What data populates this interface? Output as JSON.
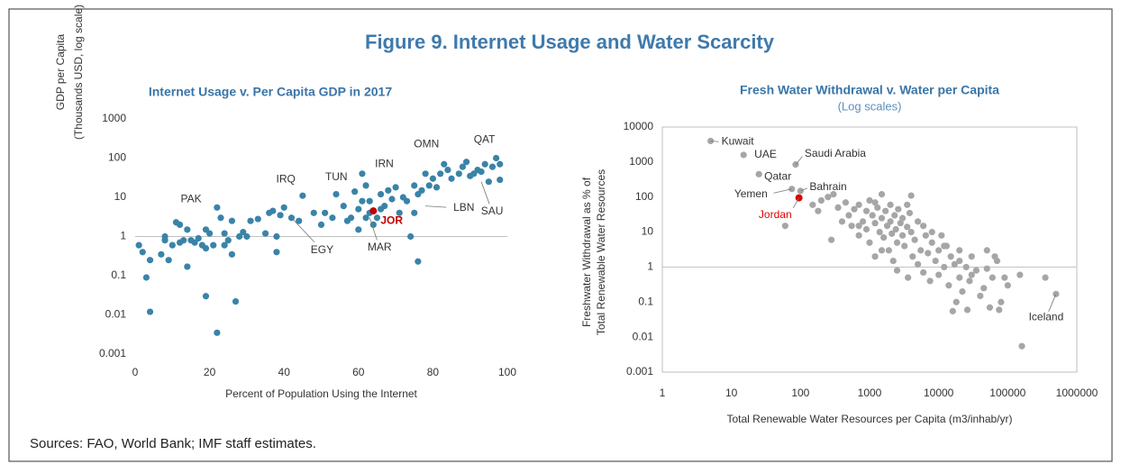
{
  "title": "Figure 9. Internet Usage and Water Scarcity",
  "source": "Sources: FAO, World Bank; IMF staff estimates.",
  "chart_data": [
    {
      "type": "scatter",
      "title": "Internet Usage v. Per Capita GDP in 2017",
      "xlabel": "Percent of Population Using the Internet",
      "ylabel": [
        "GDP per Capita",
        "(Thousands USD, log scale)"
      ],
      "xlim": [
        0,
        100
      ],
      "xticks": [
        0,
        20,
        40,
        60,
        80,
        100
      ],
      "ylim": [
        0.001,
        1000
      ],
      "yticks": [
        1000,
        100,
        10,
        1,
        0.1,
        0.01,
        0.001
      ],
      "ylog": true,
      "xlog": false,
      "reference_line": 1,
      "frame": false,
      "color": "#3a83a8",
      "x": [
        1,
        2,
        3,
        4,
        4,
        7,
        8,
        8,
        9,
        10,
        11,
        12,
        12,
        13,
        14,
        14,
        15,
        16,
        17,
        18,
        19,
        19,
        19,
        20,
        21,
        22,
        22,
        23,
        24,
        24,
        25,
        26,
        26,
        27,
        28,
        29,
        30,
        31,
        33,
        35,
        36,
        37,
        38,
        38,
        39,
        40,
        42,
        44,
        45,
        48,
        50,
        51,
        53,
        54,
        56,
        57,
        58,
        59,
        60,
        60,
        61,
        61,
        62,
        62,
        63,
        63,
        64,
        65,
        66,
        66,
        67,
        68,
        69,
        70,
        71,
        72,
        73,
        74,
        75,
        75,
        76,
        76,
        77,
        78,
        79,
        80,
        81,
        82,
        83,
        84,
        85,
        87,
        88,
        89,
        90,
        91,
        92,
        93,
        94,
        95,
        96,
        97,
        98,
        98
      ],
      "y": [
        0.6,
        0.4,
        0.09,
        0.25,
        0.012,
        0.35,
        1,
        0.8,
        0.25,
        0.6,
        2.3,
        2,
        0.7,
        0.8,
        0.17,
        1.5,
        0.8,
        0.7,
        0.9,
        0.6,
        1.5,
        0.5,
        0.03,
        1.2,
        0.6,
        5.5,
        0.0035,
        3,
        1.2,
        0.6,
        0.8,
        0.35,
        2.5,
        0.022,
        1,
        1.3,
        1,
        2.5,
        2.8,
        1.2,
        4,
        4.5,
        1,
        0.4,
        3.5,
        5.5,
        3,
        2.5,
        11,
        4,
        2,
        4,
        3,
        12,
        6,
        2.5,
        3,
        14,
        5,
        1.5,
        8,
        40,
        3,
        20,
        8,
        4,
        2,
        3,
        5,
        12,
        6,
        15,
        9,
        18,
        4,
        10,
        8,
        1,
        20,
        4,
        0.23,
        12,
        15,
        40,
        20,
        30,
        18,
        40,
        70,
        50,
        30,
        40,
        60,
        80,
        35,
        40,
        50,
        45,
        70,
        25,
        60,
        100,
        70,
        28
      ],
      "highlight": {
        "x": 64,
        "y": 4.5,
        "color": "#c00000",
        "label": "JOR"
      },
      "annotations": [
        {
          "text": "PAK",
          "x": 16,
          "y": 0.7
        },
        {
          "text": "IRQ",
          "x": 40,
          "y": 5.5
        },
        {
          "text": "TUN",
          "x": 56,
          "y": 6
        },
        {
          "text": "IRN",
          "x": 65,
          "y": 5
        },
        {
          "text": "OMN",
          "x": 79,
          "y": 30
        },
        {
          "text": "QAT",
          "x": 97,
          "y": 100
        },
        {
          "text": "LBN",
          "x": 78,
          "y": 6
        },
        {
          "text": "SAU",
          "x": 93,
          "y": 25
        },
        {
          "text": "EGY",
          "x": 42,
          "y": 3
        },
        {
          "text": "MAR",
          "x": 63,
          "y": 3
        }
      ]
    },
    {
      "type": "scatter",
      "title": "Fresh Water Withdrawal v. Water per Capita",
      "subtitle": "(Log scales)",
      "xlabel": "Total Renewable Water Resources per Capita (m3/inhab/yr)",
      "ylabel": [
        "Freshwater Withdrawal as % of",
        "Total Renewable Water Resources"
      ],
      "xlim": [
        1,
        1000000
      ],
      "xticks": [
        1,
        10,
        100,
        1000,
        10000,
        100000,
        1000000
      ],
      "ylim": [
        0.001,
        10000
      ],
      "yticks": [
        10000,
        1000,
        100,
        10,
        1,
        0.1,
        0.01,
        0.001
      ],
      "ylog": true,
      "xlog": true,
      "reference_line": 1,
      "frame": true,
      "color": "#a6a6a6",
      "x": [
        5,
        15,
        85,
        25,
        75,
        100,
        60,
        150,
        180,
        200,
        250,
        300,
        280,
        350,
        400,
        450,
        500,
        550,
        600,
        700,
        700,
        800,
        900,
        1000,
        1000,
        1100,
        1200,
        1200,
        1300,
        1400,
        1500,
        1500,
        1600,
        1700,
        1800,
        1900,
        2000,
        2000,
        2100,
        2200,
        2300,
        2400,
        2500,
        2600,
        2800,
        3000,
        3000,
        3200,
        3500,
        3600,
        3800,
        4000,
        4000,
        4200,
        4500,
        5000,
        5000,
        5500,
        6000,
        6500,
        7000,
        7500,
        8000,
        9000,
        10000,
        10000,
        11000,
        12000,
        13000,
        14000,
        15000,
        16000,
        17000,
        18000,
        20000,
        20000,
        22000,
        25000,
        26000,
        28000,
        30000,
        35000,
        40000,
        45000,
        50000,
        50000,
        60000,
        70000,
        75000,
        80000,
        90000,
        100000,
        150000,
        160000,
        350000,
        500000,
        1500,
        700,
        900,
        1200,
        2500,
        6000,
        3500,
        8000,
        12000,
        20000,
        30000,
        55000,
        65000
      ],
      "y": [
        4000,
        1600,
        850,
        450,
        170,
        150,
        15,
        60,
        40,
        80,
        100,
        120,
        6,
        50,
        20,
        70,
        30,
        15,
        45,
        60,
        8,
        20,
        12,
        80,
        5,
        30,
        18,
        2,
        50,
        10,
        120,
        25,
        7,
        40,
        15,
        3,
        60,
        20,
        9,
        1.5,
        30,
        12,
        0.8,
        45,
        18,
        8,
        25,
        4,
        14,
        0.5,
        35,
        110,
        10,
        2,
        6,
        20,
        1.2,
        3,
        0.7,
        8,
        2.5,
        0.4,
        5,
        1.5,
        3,
        0.6,
        8,
        1,
        4,
        0.3,
        2,
        0.055,
        1.2,
        0.1,
        3,
        0.5,
        0.2,
        1,
        0.06,
        0.4,
        2,
        0.8,
        0.15,
        0.25,
        3,
        0.9,
        0.5,
        1.5,
        0.06,
        0.1,
        0.5,
        0.3,
        0.6,
        0.0055,
        0.5,
        0.17,
        3,
        15,
        40,
        70,
        5,
        15,
        60,
        10,
        4,
        1.5,
        0.6,
        0.07,
        2
      ],
      "highlight": {
        "x": 95,
        "y": 95,
        "color": "#e00000",
        "label": "Jordan"
      },
      "annotations": [
        {
          "text": "Kuwait",
          "x": 5,
          "y": 4000
        },
        {
          "text": "UAE",
          "x": 15,
          "y": 1600
        },
        {
          "text": "Saudi Arabia",
          "x": 85,
          "y": 850
        },
        {
          "text": "Qatar",
          "x": 25,
          "y": 450
        },
        {
          "text": "Yemen",
          "x": 75,
          "y": 170
        },
        {
          "text": "Bahrain",
          "x": 100,
          "y": 150
        },
        {
          "text": "Iceland",
          "x": 500000,
          "y": 0.17
        }
      ]
    }
  ]
}
